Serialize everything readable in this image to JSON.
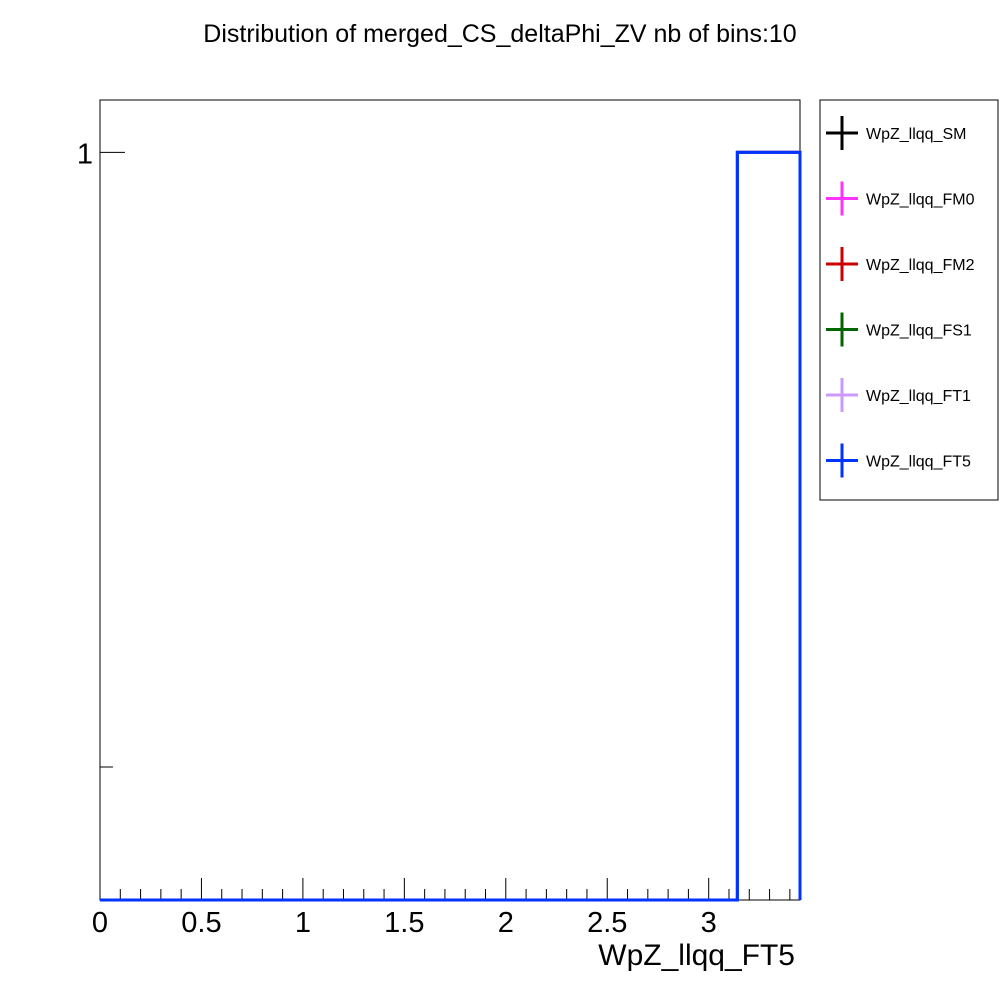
{
  "chart_data": {
    "type": "histogram",
    "title": "Distribution of merged_CS_deltaPhi_ZV nb of bins:10",
    "xlabel": "WpZ_llqq_FT5",
    "ylabel": "",
    "xlim": [
      0,
      3.45
    ],
    "ylim": [
      0,
      1.07
    ],
    "x_ticks": [
      "0",
      "0.5",
      "1",
      "1.5",
      "2",
      "2.5",
      "3"
    ],
    "x_tick_values": [
      0,
      0.5,
      1,
      1.5,
      2,
      2.5,
      3
    ],
    "y_ticks": [
      "1"
    ],
    "y_tick_values": [
      1
    ],
    "grid": false,
    "legend_position": "right",
    "bin_edges": [
      0,
      0.3142,
      0.6283,
      0.9425,
      1.2566,
      1.5708,
      1.885,
      2.1991,
      2.5133,
      2.8274,
      3.1416,
      3.45
    ],
    "series": [
      {
        "name": "WpZ_llqq_SM",
        "color": "#000000",
        "values": [
          0,
          0,
          0,
          0,
          0,
          0,
          0,
          0,
          0,
          0,
          1
        ]
      },
      {
        "name": "WpZ_llqq_FM0",
        "color": "#ff33ff",
        "values": [
          0,
          0,
          0,
          0,
          0,
          0,
          0,
          0,
          0,
          0,
          1
        ]
      },
      {
        "name": "WpZ_llqq_FM2",
        "color": "#cc0000",
        "values": [
          0,
          0,
          0,
          0,
          0,
          0,
          0,
          0,
          0,
          0,
          1
        ]
      },
      {
        "name": "WpZ_llqq_FS1",
        "color": "#006600",
        "values": [
          0,
          0,
          0,
          0,
          0,
          0,
          0,
          0,
          0,
          0,
          1
        ]
      },
      {
        "name": "WpZ_llqq_FT1",
        "color": "#cc99ff",
        "values": [
          0,
          0,
          0,
          0,
          0,
          0,
          0,
          0,
          0,
          0,
          1
        ]
      },
      {
        "name": "WpZ_llqq_FT5",
        "color": "#0033ff",
        "values": [
          0,
          0,
          0,
          0,
          0,
          0,
          0,
          0,
          0,
          0,
          1
        ]
      }
    ]
  }
}
